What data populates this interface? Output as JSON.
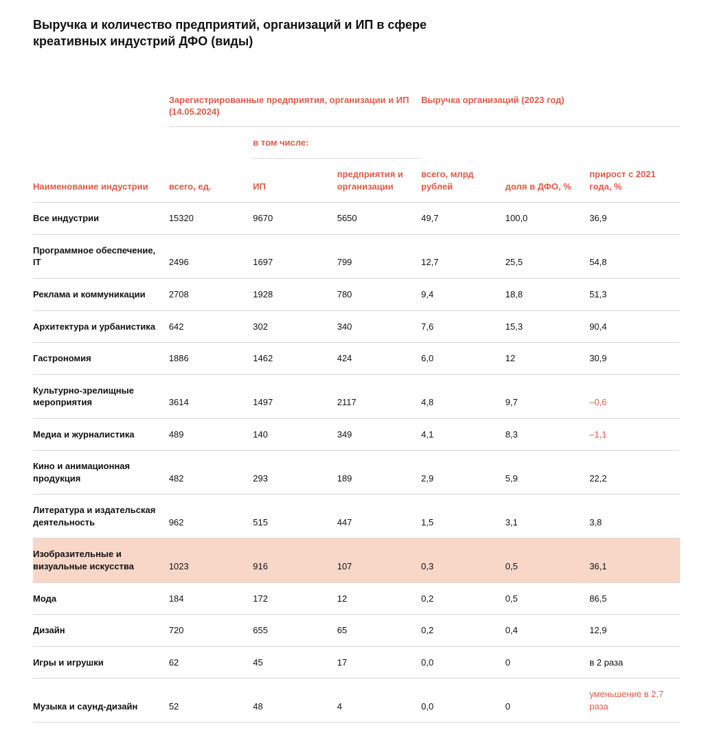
{
  "title": "Выручка и количество предприятий, организаций и ИП в сфере креативных индустрий ДФО (виды)",
  "table": {
    "type": "table",
    "accent_color": "#e05a47",
    "highlight_row_bg": "#f8d7c8",
    "border_color": "#d9d9d9",
    "text_color": "#111111",
    "background_color": "#ffffff",
    "font_family": "Arial",
    "header_fontsize": 13,
    "body_fontsize": 13,
    "column_widths_pct": [
      21,
      13,
      13,
      13,
      13,
      13,
      14
    ],
    "head": {
      "group_registered": "Зарегистрированные предприятия, организации и ИП (14.05.2024)",
      "group_revenue": "Выручка организаций (2023 год)",
      "sub_including": "в том числе:",
      "col_industry": "Наименование индустрии",
      "col_total_units": "всего, ед.",
      "col_ip": "ИП",
      "col_orgs": "предприятия и организации",
      "col_revenue_total": "всего, млрд рублей",
      "col_share": "доля в ДФО, %",
      "col_growth": "прирост с 2021 года, %"
    },
    "rows": [
      {
        "label": "Все индустрии",
        "total": "15320",
        "ip": "9670",
        "orgs": "5650",
        "rev": "49,7",
        "share": "100,0",
        "growth": "36,9",
        "growth_neg": false,
        "highlight": false
      },
      {
        "label": "Программное обеспечение, IT",
        "total": "2496",
        "ip": "1697",
        "orgs": "799",
        "rev": "12,7",
        "share": "25,5",
        "growth": "54,8",
        "growth_neg": false,
        "highlight": false
      },
      {
        "label": "Реклама и коммуникации",
        "total": "2708",
        "ip": "1928",
        "orgs": "780",
        "rev": "9,4",
        "share": "18,8",
        "growth": "51,3",
        "growth_neg": false,
        "highlight": false
      },
      {
        "label": "Архитектура и урбанистика",
        "total": "642",
        "ip": "302",
        "orgs": "340",
        "rev": "7,6",
        "share": "15,3",
        "growth": "90,4",
        "growth_neg": false,
        "highlight": false
      },
      {
        "label": "Гастрономия",
        "total": "1886",
        "ip": "1462",
        "orgs": "424",
        "rev": "6,0",
        "share": "12",
        "growth": "30,9",
        "growth_neg": false,
        "highlight": false
      },
      {
        "label": "Культурно-зрелищные мероприятия",
        "total": "3614",
        "ip": "1497",
        "orgs": "2117",
        "rev": "4,8",
        "share": "9,7",
        "growth": "–0,6",
        "growth_neg": true,
        "highlight": false
      },
      {
        "label": "Медиа и журналистика",
        "total": "489",
        "ip": "140",
        "orgs": "349",
        "rev": "4,1",
        "share": "8,3",
        "growth": "–1,1",
        "growth_neg": true,
        "highlight": false
      },
      {
        "label": "Кино и анимационная продукция",
        "total": "482",
        "ip": "293",
        "orgs": "189",
        "rev": "2,9",
        "share": "5,9",
        "growth": "22,2",
        "growth_neg": false,
        "highlight": false
      },
      {
        "label": "Литература и издательская деятельность",
        "total": "962",
        "ip": "515",
        "orgs": "447",
        "rev": "1,5",
        "share": "3,1",
        "growth": "3,8",
        "growth_neg": false,
        "highlight": false
      },
      {
        "label": "Изобразительные и визуальные искусства",
        "total": "1023",
        "ip": "916",
        "orgs": "107",
        "rev": "0,3",
        "share": "0,5",
        "growth": "36,1",
        "growth_neg": false,
        "highlight": true
      },
      {
        "label": "Мода",
        "total": "184",
        "ip": "172",
        "orgs": "12",
        "rev": "0,2",
        "share": "0,5",
        "growth": "86,5",
        "growth_neg": false,
        "highlight": false
      },
      {
        "label": "Дизайн",
        "total": "720",
        "ip": "655",
        "orgs": "65",
        "rev": "0,2",
        "share": "0,4",
        "growth": "12,9",
        "growth_neg": false,
        "highlight": false
      },
      {
        "label": "Игры и игрушки",
        "total": "62",
        "ip": "45",
        "orgs": "17",
        "rev": "0,0",
        "share": "0",
        "growth": "в 2 раза",
        "growth_neg": false,
        "highlight": false
      },
      {
        "label": "Музыка и саунд-дизайн",
        "total": "52",
        "ip": "48",
        "orgs": "4",
        "rev": "0,0",
        "share": "0",
        "growth": "уменьшение в 2,7 раза",
        "growth_neg": true,
        "highlight": false
      }
    ]
  }
}
